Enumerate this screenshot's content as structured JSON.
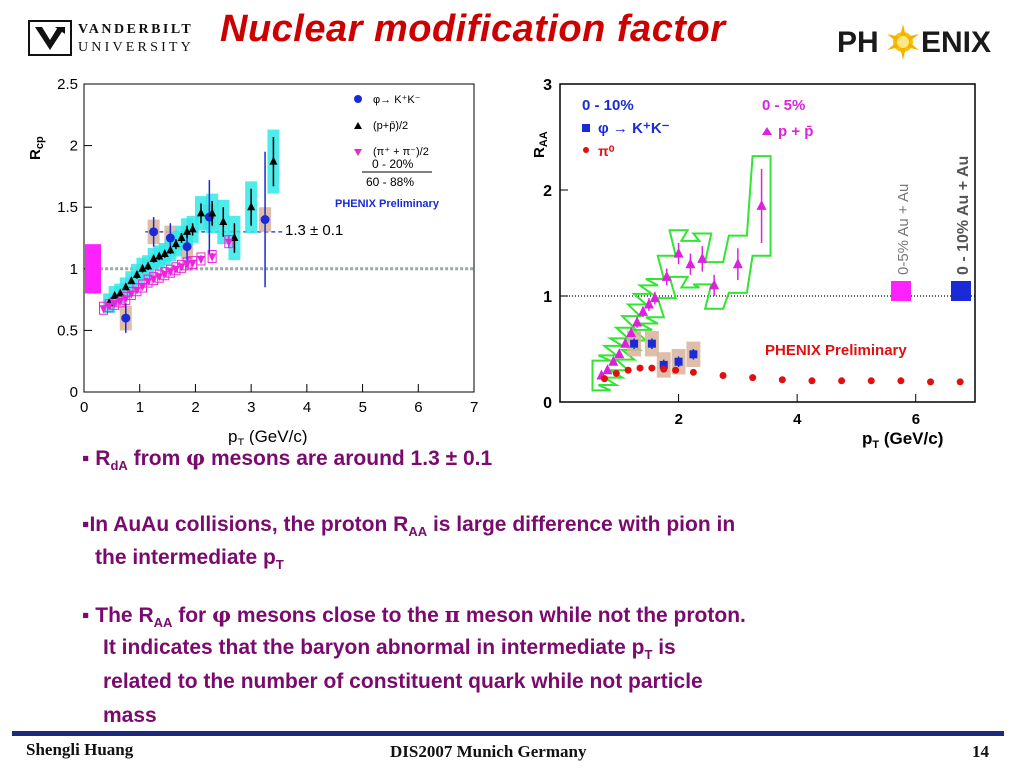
{
  "slide": {
    "title": "Nuclear modification factor",
    "logo_left": {
      "line1": "VANDERBILT",
      "line2": "UNIVERSITY"
    },
    "logo_right": {
      "text_pre": "PH",
      "text_post": "ENIX"
    },
    "bullets": [
      {
        "parts": [
          "▪ R",
          "dA",
          " from ",
          "φ",
          " mesons are around 1.3 ",
          "±",
          " 0.1"
        ]
      },
      {
        "line1": [
          "▪In AuAu collisions, the proton R",
          "AA",
          " is large difference with pion in"
        ],
        "line2": [
          "the intermediate p",
          "T"
        ]
      },
      {
        "line1": [
          "▪ The R",
          "AA",
          " for ",
          "φ",
          " mesons close to the ",
          "π",
          " meson while not the proton."
        ],
        "line2": [
          "It indicates that the baryon abnormal in intermediate p",
          "T",
          "  is"
        ],
        "line3": "related to the number of constituent  quark while not particle",
        "line4": "mass"
      }
    ],
    "footer": {
      "left": "Shengli Huang",
      "center": "DIS2007 Munich Germany",
      "right": "14"
    },
    "colors": {
      "title": "#cc0000",
      "bullet_text": "#7a0a6e",
      "footer_bar": "#1b2a7a"
    }
  },
  "chart_data": [
    {
      "type": "scatter",
      "title": "",
      "xlabel": "p_T (GeV/c)",
      "ylabel": "R_cp",
      "xlim": [
        0,
        7
      ],
      "ylim": [
        0,
        2.5
      ],
      "xticks": [
        "0",
        "1",
        "2",
        "3",
        "4",
        "5",
        "6",
        "7"
      ],
      "yticks": [
        "0",
        "0.5",
        "1",
        "1.5",
        "2",
        "2.5"
      ],
      "legend_position": "top-right",
      "legend": [
        {
          "label": "φ→ K⁺K⁻",
          "marker": "circle",
          "color": "#1a2ad6"
        },
        {
          "label": "(p+p̄)/2",
          "marker": "triangle-up",
          "color": "#000000"
        },
        {
          "label": "(π⁺ + π⁻)/2",
          "marker": "triangle-down",
          "color": "#ee22dd"
        }
      ],
      "centrality_top": "0 - 20%",
      "centrality_bottom": "60 - 88%",
      "preliminary": "PHENIX Preliminary",
      "annotation": "1.3 ± 0.1",
      "fit_line": {
        "value": 1.3,
        "x": [
          1.1,
          3.6
        ]
      },
      "reference_line": 1.0,
      "series": [
        {
          "name": "φ→ K⁺K⁻",
          "color": "#1a2ad6",
          "marker": "circle",
          "x": [
            0.75,
            1.25,
            1.55,
            1.85,
            2.25,
            3.25
          ],
          "y": [
            0.6,
            1.3,
            1.25,
            1.18,
            1.42,
            1.4
          ],
          "yerr": [
            0.12,
            0.12,
            0.12,
            0.12,
            0.3,
            0.55
          ]
        },
        {
          "name": "(p+p̄)/2",
          "color": "#000000",
          "marker": "triangle-up",
          "x": [
            0.45,
            0.55,
            0.65,
            0.75,
            0.85,
            0.95,
            1.05,
            1.15,
            1.25,
            1.35,
            1.45,
            1.55,
            1.65,
            1.75,
            1.85,
            1.95,
            2.1,
            2.3,
            2.5,
            2.7,
            3.0,
            3.4
          ],
          "y": [
            0.72,
            0.78,
            0.8,
            0.85,
            0.9,
            0.95,
            1.0,
            1.02,
            1.08,
            1.1,
            1.12,
            1.15,
            1.2,
            1.25,
            1.3,
            1.32,
            1.45,
            1.45,
            1.38,
            1.25,
            1.5,
            1.87
          ],
          "yerr": [
            0.02,
            0.02,
            0.02,
            0.02,
            0.02,
            0.03,
            0.03,
            0.03,
            0.03,
            0.03,
            0.03,
            0.03,
            0.04,
            0.04,
            0.05,
            0.05,
            0.08,
            0.1,
            0.12,
            0.12,
            0.15,
            0.2
          ]
        },
        {
          "name": "(π⁺ + π⁻)/2",
          "color": "#ee22dd",
          "marker": "triangle-down",
          "x": [
            0.35,
            0.45,
            0.55,
            0.65,
            0.75,
            0.85,
            0.95,
            1.05,
            1.15,
            1.25,
            1.35,
            1.45,
            1.55,
            1.65,
            1.75,
            1.85,
            1.95,
            2.1,
            2.3,
            2.6
          ],
          "y": [
            0.68,
            0.7,
            0.72,
            0.74,
            0.76,
            0.8,
            0.83,
            0.86,
            0.9,
            0.92,
            0.94,
            0.96,
            0.98,
            1.0,
            1.02,
            1.04,
            1.05,
            1.08,
            1.1,
            1.22
          ],
          "yerr": [
            0.01,
            0.01,
            0.01,
            0.01,
            0.01,
            0.01,
            0.01,
            0.01,
            0.01,
            0.01,
            0.01,
            0.01,
            0.01,
            0.02,
            0.02,
            0.02,
            0.02,
            0.03,
            0.03,
            0.05
          ]
        }
      ]
    },
    {
      "type": "scatter",
      "title": "",
      "xlabel": "p_T (GeV/c)",
      "ylabel": "R_AA",
      "xlim": [
        0,
        7
      ],
      "ylim": [
        0,
        3
      ],
      "xticks": [
        "2",
        "4",
        "6"
      ],
      "yticks": [
        "0",
        "1",
        "2",
        "3"
      ],
      "legend_left": {
        "centrality": "0 - 10%",
        "entries": [
          {
            "label": "φ → K⁺K⁻",
            "marker": "square",
            "color": "#1a2ad6"
          },
          {
            "label": "π⁰",
            "marker": "circle",
            "color": "#e01010"
          }
        ]
      },
      "legend_right": {
        "centrality": "0 - 5%",
        "entries": [
          {
            "label": "p + p̄",
            "marker": "triangle-up",
            "color": "#dd22dd"
          }
        ]
      },
      "preliminary": "PHENIX Preliminary",
      "side_labels": [
        "0-5% Au + Au",
        "0 - 10% Au + Au"
      ],
      "reference_line": 1.0,
      "series": [
        {
          "name": "p + p̄",
          "color": "#dd22dd",
          "marker": "triangle-up",
          "x": [
            0.7,
            0.8,
            0.9,
            1.0,
            1.1,
            1.2,
            1.3,
            1.4,
            1.5,
            1.6,
            1.8,
            2.0,
            2.2,
            2.4,
            2.6,
            3.0,
            3.4
          ],
          "y": [
            0.25,
            0.3,
            0.38,
            0.45,
            0.55,
            0.65,
            0.75,
            0.85,
            0.92,
            0.98,
            1.18,
            1.4,
            1.3,
            1.35,
            1.1,
            1.3,
            1.85
          ],
          "yerr": [
            0.02,
            0.02,
            0.03,
            0.03,
            0.03,
            0.04,
            0.05,
            0.05,
            0.06,
            0.06,
            0.08,
            0.1,
            0.1,
            0.12,
            0.1,
            0.15,
            0.35
          ]
        },
        {
          "name": "φ → K⁺K⁻",
          "color": "#1a2ad6",
          "marker": "square",
          "x": [
            1.25,
            1.55,
            1.75,
            2.0,
            2.25
          ],
          "y": [
            0.55,
            0.55,
            0.35,
            0.38,
            0.45
          ],
          "yerr": [
            0.05,
            0.05,
            0.05,
            0.05,
            0.05
          ]
        },
        {
          "name": "π⁰",
          "color": "#e01010",
          "marker": "circle",
          "x": [
            0.75,
            0.95,
            1.15,
            1.35,
            1.55,
            1.75,
            1.95,
            2.25,
            2.75,
            3.25,
            3.75,
            4.25,
            4.75,
            5.25,
            5.75,
            6.25,
            6.75
          ],
          "y": [
            0.22,
            0.27,
            0.3,
            0.32,
            0.32,
            0.31,
            0.3,
            0.28,
            0.25,
            0.23,
            0.21,
            0.2,
            0.2,
            0.2,
            0.2,
            0.19,
            0.19
          ],
          "yerr": [
            0.01,
            0.01,
            0.01,
            0.01,
            0.01,
            0.01,
            0.01,
            0.01,
            0.01,
            0.01,
            0.01,
            0.01,
            0.01,
            0.01,
            0.01,
            0.01,
            0.01
          ]
        }
      ]
    }
  ]
}
